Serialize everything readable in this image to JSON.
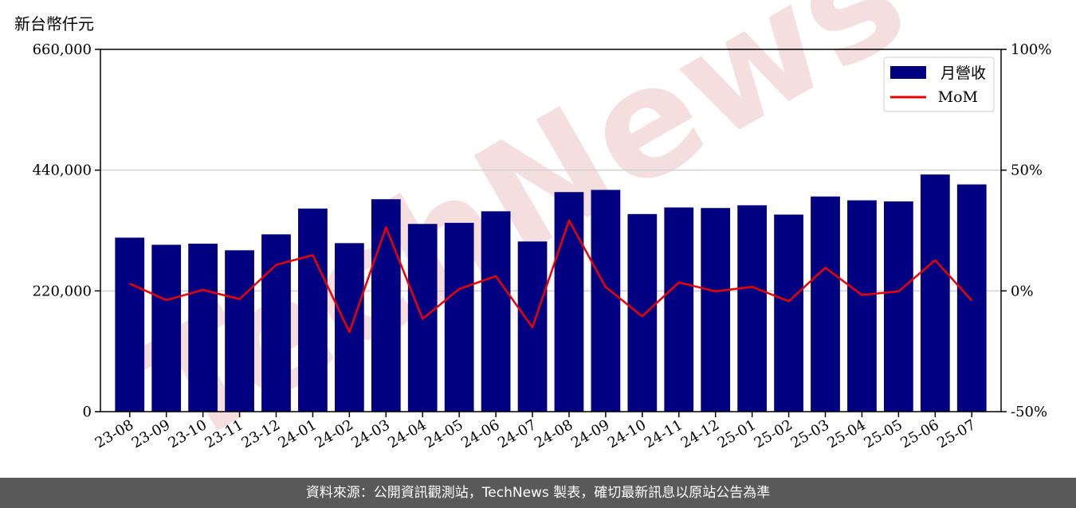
{
  "unit_label": "新台幣仟元",
  "footer_text": "資料來源：公開資訊觀測站，TechNews 製表，確切最新訊息以原站公告為準",
  "watermark": "TechNews",
  "colors": {
    "bar": "#000080",
    "line": "#ee0000",
    "footer_bg": "#595959",
    "watermark": "#f5dede"
  },
  "chart_data": {
    "type": "bar",
    "categories": [
      "23-08",
      "23-09",
      "23-10",
      "23-11",
      "23-12",
      "24-01",
      "24-02",
      "24-03",
      "24-04",
      "24-05",
      "24-06",
      "24-07",
      "24-08",
      "24-09",
      "24-10",
      "24-11",
      "24-12",
      "25-01",
      "25-02",
      "25-03",
      "25-04",
      "25-05",
      "25-06",
      "25-07"
    ],
    "series": [
      {
        "name": "月營收",
        "type": "bar",
        "axis": "left",
        "values": [
          317000,
          304000,
          306000,
          294000,
          323000,
          370000,
          307000,
          387000,
          342000,
          344000,
          365000,
          310000,
          400000,
          404000,
          360000,
          372000,
          371000,
          376000,
          359000,
          392000,
          385000,
          383000,
          432000,
          414000
        ]
      },
      {
        "name": "MoM",
        "type": "line",
        "axis": "right",
        "values": [
          3.0,
          -3.8,
          0.4,
          -3.4,
          10.8,
          14.8,
          -17.0,
          26.3,
          -11.6,
          0.8,
          6.1,
          -15.1,
          29.2,
          1.6,
          -10.5,
          3.5,
          -0.2,
          1.7,
          -4.3,
          9.6,
          -1.7,
          -0.2,
          12.7,
          -4.0
        ]
      }
    ],
    "left_axis": {
      "ylim": [
        0,
        660000
      ],
      "ticks": [
        0,
        220000,
        440000,
        660000
      ],
      "tick_labels": [
        "0",
        "220,000",
        "440,000",
        "660,000"
      ]
    },
    "right_axis": {
      "ylim": [
        -50,
        100
      ],
      "ticks": [
        -50,
        0,
        50,
        100
      ],
      "tick_labels": [
        "-50%",
        "0%",
        "50%",
        "100%"
      ]
    },
    "grid": "horizontal",
    "legend": {
      "position": "top-right",
      "entries": [
        "月營收",
        "MoM"
      ]
    }
  }
}
